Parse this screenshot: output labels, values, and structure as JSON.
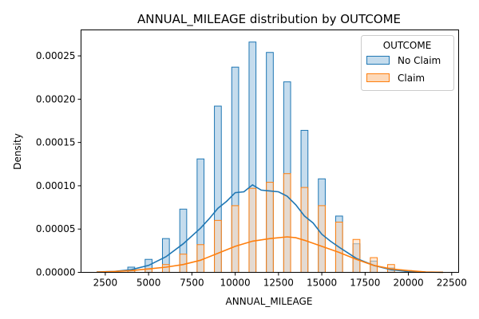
{
  "chart_data": {
    "type": "histogram",
    "title": "ANNUAL_MILEAGE distribution by OUTCOME",
    "xlabel": "ANNUAL_MILEAGE",
    "ylabel": "Density",
    "xlim": [
      1100,
      22900
    ],
    "ylim": [
      0,
      0.00028
    ],
    "xticks": [
      2500,
      5000,
      7500,
      10000,
      12500,
      15000,
      17500,
      20000,
      22500
    ],
    "xtick_labels": [
      "2500",
      "5000",
      "7500",
      "10000",
      "12500",
      "15000",
      "17500",
      "20000",
      "22500"
    ],
    "yticks": [
      0,
      5e-05,
      0.0001,
      0.00015,
      0.0002,
      0.00025
    ],
    "ytick_labels": [
      "0.00000",
      "0.00005",
      "0.00010",
      "0.00015",
      "0.00020",
      "0.00025"
    ],
    "grid": false,
    "legend": {
      "title": "OUTCOME",
      "placement": "top-right",
      "entries": [
        "No Claim",
        "Claim"
      ]
    },
    "colors": {
      "no_claim_fill": "#c5dced",
      "no_claim_edge": "#1f77b4",
      "claim_fill": "#fdd9b9",
      "claim_edge": "#ff7f0e",
      "overlap_fill": "#c9bfb6"
    },
    "bin_width": 400,
    "series": [
      {
        "name": "No Claim",
        "bins": [
          {
            "x": 4000,
            "value": 6e-06
          },
          {
            "x": 5000,
            "value": 1.5e-05
          },
          {
            "x": 6000,
            "value": 3.9e-05
          },
          {
            "x": 7000,
            "value": 7.3e-05
          },
          {
            "x": 8000,
            "value": 0.000131
          },
          {
            "x": 9000,
            "value": 0.000192
          },
          {
            "x": 10000,
            "value": 0.000237
          },
          {
            "x": 11000,
            "value": 0.000266
          },
          {
            "x": 12000,
            "value": 0.000254
          },
          {
            "x": 13000,
            "value": 0.00022
          },
          {
            "x": 14000,
            "value": 0.000164
          },
          {
            "x": 15000,
            "value": 0.000108
          },
          {
            "x": 16000,
            "value": 6.5e-05
          },
          {
            "x": 17000,
            "value": 3.3e-05
          },
          {
            "x": 18000,
            "value": 1.3e-05
          },
          {
            "x": 19000,
            "value": 5e-06
          },
          {
            "x": 20000,
            "value": 1e-06
          }
        ],
        "kde": [
          [
            2000,
            5e-07
          ],
          [
            3000,
            1e-06
          ],
          [
            4000,
            3e-06
          ],
          [
            5000,
            8e-06
          ],
          [
            6000,
            1.8e-05
          ],
          [
            7000,
            3.3e-05
          ],
          [
            8000,
            5.1e-05
          ],
          [
            8500,
            6.2e-05
          ],
          [
            9000,
            7.4e-05
          ],
          [
            9500,
            8.2e-05
          ],
          [
            10000,
            9.2e-05
          ],
          [
            10500,
            9.3e-05
          ],
          [
            11000,
            0.000101
          ],
          [
            11500,
            9.5e-05
          ],
          [
            12000,
            9.4e-05
          ],
          [
            12500,
            9.3e-05
          ],
          [
            13000,
            8.8e-05
          ],
          [
            13500,
            7.8e-05
          ],
          [
            14000,
            6.5e-05
          ],
          [
            14500,
            5.7e-05
          ],
          [
            15000,
            4.4e-05
          ],
          [
            15500,
            3.6e-05
          ],
          [
            16000,
            2.9e-05
          ],
          [
            17000,
            1.6e-05
          ],
          [
            18000,
            8e-06
          ],
          [
            19000,
            3e-06
          ],
          [
            20000,
            1e-06
          ],
          [
            21000,
            3e-07
          ],
          [
            22000,
            1e-07
          ]
        ]
      },
      {
        "name": "Claim",
        "bins": [
          {
            "x": 4000,
            "value": 2e-06
          },
          {
            "x": 5000,
            "value": 4e-06
          },
          {
            "x": 6000,
            "value": 9e-06
          },
          {
            "x": 7000,
            "value": 2.1e-05
          },
          {
            "x": 8000,
            "value": 3.2e-05
          },
          {
            "x": 9000,
            "value": 6e-05
          },
          {
            "x": 10000,
            "value": 7.7e-05
          },
          {
            "x": 11000,
            "value": 9.7e-05
          },
          {
            "x": 12000,
            "value": 0.000104
          },
          {
            "x": 13000,
            "value": 0.000114
          },
          {
            "x": 14000,
            "value": 9.8e-05
          },
          {
            "x": 15000,
            "value": 7.7e-05
          },
          {
            "x": 16000,
            "value": 5.8e-05
          },
          {
            "x": 17000,
            "value": 3.8e-05
          },
          {
            "x": 18000,
            "value": 1.7e-05
          },
          {
            "x": 19000,
            "value": 9e-06
          },
          {
            "x": 20000,
            "value": 2e-06
          }
        ],
        "kde": [
          [
            2000,
            3e-07
          ],
          [
            3000,
            1e-06
          ],
          [
            4000,
            2e-06
          ],
          [
            5000,
            4e-06
          ],
          [
            6000,
            6e-06
          ],
          [
            7000,
            9e-06
          ],
          [
            8000,
            1.4e-05
          ],
          [
            9000,
            2.2e-05
          ],
          [
            10000,
            3e-05
          ],
          [
            11000,
            3.6e-05
          ],
          [
            12000,
            3.9e-05
          ],
          [
            13000,
            4.1e-05
          ],
          [
            13500,
            4e-05
          ],
          [
            14000,
            3.7e-05
          ],
          [
            15000,
            3e-05
          ],
          [
            16000,
            2.3e-05
          ],
          [
            17000,
            1.5e-05
          ],
          [
            18000,
            8e-06
          ],
          [
            19000,
            4e-06
          ],
          [
            20000,
            2e-06
          ],
          [
            21000,
            5e-07
          ],
          [
            22000,
            1e-07
          ]
        ]
      }
    ]
  }
}
